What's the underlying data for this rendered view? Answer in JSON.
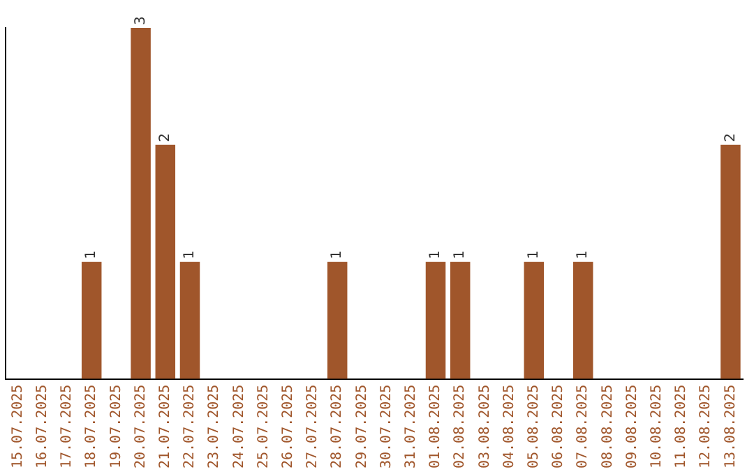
{
  "chart_data": {
    "type": "bar",
    "categories": [
      "15.07.2025",
      "16.07.2025",
      "17.07.2025",
      "18.07.2025",
      "19.07.2025",
      "20.07.2025",
      "21.07.2025",
      "22.07.2025",
      "23.07.2025",
      "24.07.2025",
      "25.07.2025",
      "26.07.2025",
      "27.07.2025",
      "28.07.2025",
      "29.07.2025",
      "30.07.2025",
      "31.07.2025",
      "01.08.2025",
      "02.08.2025",
      "03.08.2025",
      "04.08.2025",
      "05.08.2025",
      "06.08.2025",
      "07.08.2025",
      "08.08.2025",
      "09.08.2025",
      "10.08.2025",
      "11.08.2025",
      "12.08.2025",
      "13.08.2025"
    ],
    "values": [
      0,
      0,
      0,
      1,
      0,
      3,
      2,
      1,
      0,
      0,
      0,
      0,
      0,
      1,
      0,
      0,
      0,
      1,
      1,
      0,
      0,
      1,
      0,
      1,
      0,
      0,
      0,
      0,
      0,
      2
    ],
    "value_labels": [
      null,
      null,
      null,
      "1",
      null,
      "3",
      "2",
      "1",
      null,
      null,
      null,
      null,
      null,
      "1",
      null,
      null,
      null,
      "1",
      "1",
      null,
      null,
      "1",
      null,
      "1",
      null,
      null,
      null,
      null,
      null,
      "2"
    ],
    "color": "#a0562b",
    "ylim": [
      0,
      3
    ],
    "tick_labels": "x",
    "grid": false,
    "legend": false
  }
}
